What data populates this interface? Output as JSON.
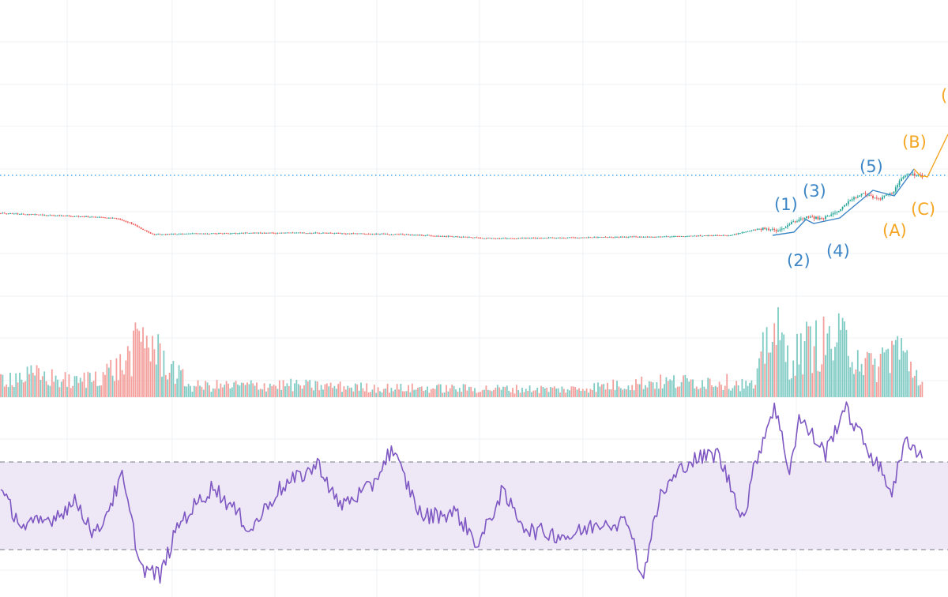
{
  "colors": {
    "up": "#26a69a",
    "down": "#ef5350",
    "volume_up": "#80cbc4",
    "volume_down": "#f3a09d",
    "rsi_line": "#7e57c2",
    "rsi_band": "#ede7f6",
    "rsi_guide": "#787b86",
    "grid": "#eef0f3",
    "price_line": "#2196f3",
    "wave_primary": "#3d86c6",
    "wave_secondary": "#f5a623"
  },
  "chart_data": [
    {
      "type": "candlestick",
      "title": "",
      "grid": true,
      "current_price_line": {
        "style": "dotted",
        "level": "recent high"
      },
      "series_shape": [
        {
          "bar": 0,
          "close": 270
        },
        {
          "bar": 60,
          "close": 276
        },
        {
          "bar": 68,
          "close": 282
        },
        {
          "bar": 80,
          "close": 297
        },
        {
          "bar": 100,
          "close": 296
        },
        {
          "bar": 130,
          "close": 295
        },
        {
          "bar": 165,
          "close": 295
        },
        {
          "bar": 215,
          "close": 297
        },
        {
          "bar": 260,
          "close": 302
        },
        {
          "bar": 335,
          "close": 300
        },
        {
          "bar": 385,
          "close": 298
        },
        {
          "bar": 395,
          "close": 292
        },
        {
          "bar": 403,
          "close": 289
        },
        {
          "bar": 410,
          "close": 292
        },
        {
          "bar": 418,
          "close": 281
        },
        {
          "bar": 425,
          "close": 274
        },
        {
          "bar": 433,
          "close": 277
        },
        {
          "bar": 440,
          "close": 270
        },
        {
          "bar": 447,
          "close": 255
        },
        {
          "bar": 455,
          "close": 245
        },
        {
          "bar": 463,
          "close": 252
        },
        {
          "bar": 470,
          "close": 245
        },
        {
          "bar": 475,
          "close": 225
        },
        {
          "bar": 480,
          "close": 220
        },
        {
          "bar": 486,
          "close": 223
        }
      ],
      "annotations": {
        "primary_wave": [
          "(1)",
          "(2)",
          "(3)",
          "(4)",
          "(5)"
        ],
        "corrective_wave": [
          "(A)",
          "(B)",
          "(C)",
          "("
        ]
      }
    },
    {
      "type": "bar",
      "title": "",
      "series_shape": [
        {
          "bar": 0,
          "volume": 32
        },
        {
          "bar": 20,
          "volume": 35
        },
        {
          "bar": 40,
          "volume": 24
        },
        {
          "bar": 64,
          "volume": 50
        },
        {
          "bar": 76,
          "volume": 100
        },
        {
          "bar": 84,
          "volume": 65
        },
        {
          "bar": 100,
          "volume": 18
        },
        {
          "bar": 150,
          "volume": 20
        },
        {
          "bar": 200,
          "volume": 15
        },
        {
          "bar": 250,
          "volume": 14
        },
        {
          "bar": 300,
          "volume": 13
        },
        {
          "bar": 340,
          "volume": 24
        },
        {
          "bar": 380,
          "volume": 26
        },
        {
          "bar": 398,
          "volume": 18
        },
        {
          "bar": 406,
          "volume": 120
        },
        {
          "bar": 416,
          "volume": 60
        },
        {
          "bar": 426,
          "volume": 85
        },
        {
          "bar": 446,
          "volume": 90
        },
        {
          "bar": 460,
          "volume": 45
        },
        {
          "bar": 472,
          "volume": 85
        },
        {
          "bar": 486,
          "volume": 25
        }
      ]
    },
    {
      "type": "line",
      "title": "",
      "ylim": [
        0,
        100
      ],
      "band": [
        30,
        70
      ],
      "series_shape": [
        {
          "bar": 0,
          "value": 56
        },
        {
          "bar": 12,
          "value": 40
        },
        {
          "bar": 26,
          "value": 44
        },
        {
          "bar": 40,
          "value": 52
        },
        {
          "bar": 50,
          "value": 36
        },
        {
          "bar": 64,
          "value": 63
        },
        {
          "bar": 74,
          "value": 22
        },
        {
          "bar": 84,
          "value": 18
        },
        {
          "bar": 94,
          "value": 42
        },
        {
          "bar": 112,
          "value": 59
        },
        {
          "bar": 132,
          "value": 39
        },
        {
          "bar": 146,
          "value": 57
        },
        {
          "bar": 168,
          "value": 69
        },
        {
          "bar": 178,
          "value": 50
        },
        {
          "bar": 195,
          "value": 58
        },
        {
          "bar": 206,
          "value": 76
        },
        {
          "bar": 222,
          "value": 45
        },
        {
          "bar": 240,
          "value": 47
        },
        {
          "bar": 252,
          "value": 32
        },
        {
          "bar": 264,
          "value": 56
        },
        {
          "bar": 278,
          "value": 39
        },
        {
          "bar": 300,
          "value": 36
        },
        {
          "bar": 318,
          "value": 43
        },
        {
          "bar": 332,
          "value": 42
        },
        {
          "bar": 338,
          "value": 16
        },
        {
          "bar": 348,
          "value": 55
        },
        {
          "bar": 362,
          "value": 70
        },
        {
          "bar": 378,
          "value": 74
        },
        {
          "bar": 392,
          "value": 44
        },
        {
          "bar": 398,
          "value": 70
        },
        {
          "bar": 408,
          "value": 96
        },
        {
          "bar": 416,
          "value": 66
        },
        {
          "bar": 421,
          "value": 90
        },
        {
          "bar": 435,
          "value": 74
        },
        {
          "bar": 445,
          "value": 95
        },
        {
          "bar": 460,
          "value": 72
        },
        {
          "bar": 470,
          "value": 57
        },
        {
          "bar": 478,
          "value": 81
        },
        {
          "bar": 486,
          "value": 72
        }
      ]
    }
  ]
}
